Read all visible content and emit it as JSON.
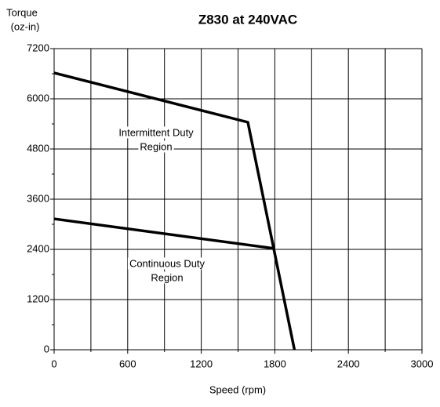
{
  "chart_data": {
    "type": "line",
    "title": "Z830 at 240VAC",
    "ylabel": [
      "Torque",
      "(oz-in)"
    ],
    "xlabel": "Speed (rpm)",
    "xlim": [
      0,
      3000
    ],
    "xticks": [
      0,
      600,
      1200,
      1800,
      2400,
      3000
    ],
    "xminor": [
      300,
      900,
      1500,
      2100,
      2700
    ],
    "ylim": [
      0,
      7200
    ],
    "yticks": [
      0,
      1200,
      2400,
      3600,
      4800,
      6000,
      7200
    ],
    "yminor": [
      600,
      1800,
      3000,
      4200,
      5400,
      6600
    ],
    "grid": true,
    "series": [
      {
        "name": "Intermittent Duty",
        "color": "#000000",
        "x": [
          0,
          1580,
          1960
        ],
        "values": [
          6620,
          5440,
          0
        ]
      },
      {
        "name": "Continuous Duty",
        "color": "#000000",
        "x": [
          0,
          1800
        ],
        "values": [
          3130,
          2420
        ]
      }
    ],
    "annotations": [
      [
        "Intermittent Duty",
        "Region"
      ],
      [
        "Continuous Duty",
        "Region"
      ]
    ]
  }
}
